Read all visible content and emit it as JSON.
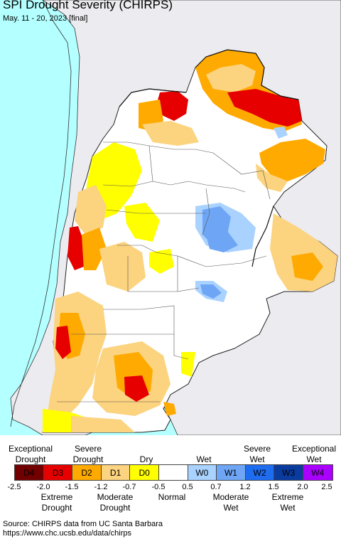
{
  "header": {
    "title": "SPI Drought Severity (CHIRPS)",
    "subtitle": "May. 11 - 20, 2023 [final]"
  },
  "legend": {
    "top_labels": [
      {
        "text": "Exceptional\nDrought",
        "key": "exceptional-drought"
      },
      {
        "text": "Severe\nDrought",
        "key": "severe-drought"
      },
      {
        "text": "Dry",
        "key": "dry"
      },
      {
        "text": "Wet",
        "key": "wet"
      },
      {
        "text": "Severe\nWet",
        "key": "severe-wet"
      },
      {
        "text": "Exceptional\nWet",
        "key": "exceptional-wet"
      }
    ],
    "boxes": [
      {
        "label": "D4",
        "color": "#730000"
      },
      {
        "label": "D3",
        "color": "#e60000"
      },
      {
        "label": "D2",
        "color": "#ffaa00"
      },
      {
        "label": "D1",
        "color": "#fcd37f"
      },
      {
        "label": "D0",
        "color": "#ffff00"
      },
      {
        "label": "",
        "color": "#ffffff"
      },
      {
        "label": "W0",
        "color": "#aad2ff"
      },
      {
        "label": "W1",
        "color": "#6ea6f5"
      },
      {
        "label": "W2",
        "color": "#1e6cf0"
      },
      {
        "label": "W3",
        "color": "#0a3ca0"
      },
      {
        "label": "W4",
        "color": "#aa00ff"
      }
    ],
    "ticks": [
      "-2.5",
      "-2.0",
      "-1.5",
      "-1.2",
      "-0.7",
      "-0.5",
      "0.5",
      "0.7",
      "1.2",
      "1.5",
      "2.0",
      "2.5"
    ],
    "bottom_labels": [
      {
        "text": "Extreme\nDrought",
        "key": "extreme-drought"
      },
      {
        "text": "Moderate\nDrought",
        "key": "moderate-drought"
      },
      {
        "text": "Normal",
        "key": "normal"
      },
      {
        "text": "Moderate\nWet",
        "key": "moderate-wet"
      },
      {
        "text": "Extreme\nWet",
        "key": "extreme-wet"
      }
    ]
  },
  "source": {
    "line1": "Source: CHIRPS data from UC Santa Barbara",
    "line2": "https://www.chc.ucsb.edu/data/chirps"
  },
  "colors": {
    "ocean": "#b4ffff",
    "outside_land": "#ecebef",
    "border": "#222222"
  }
}
